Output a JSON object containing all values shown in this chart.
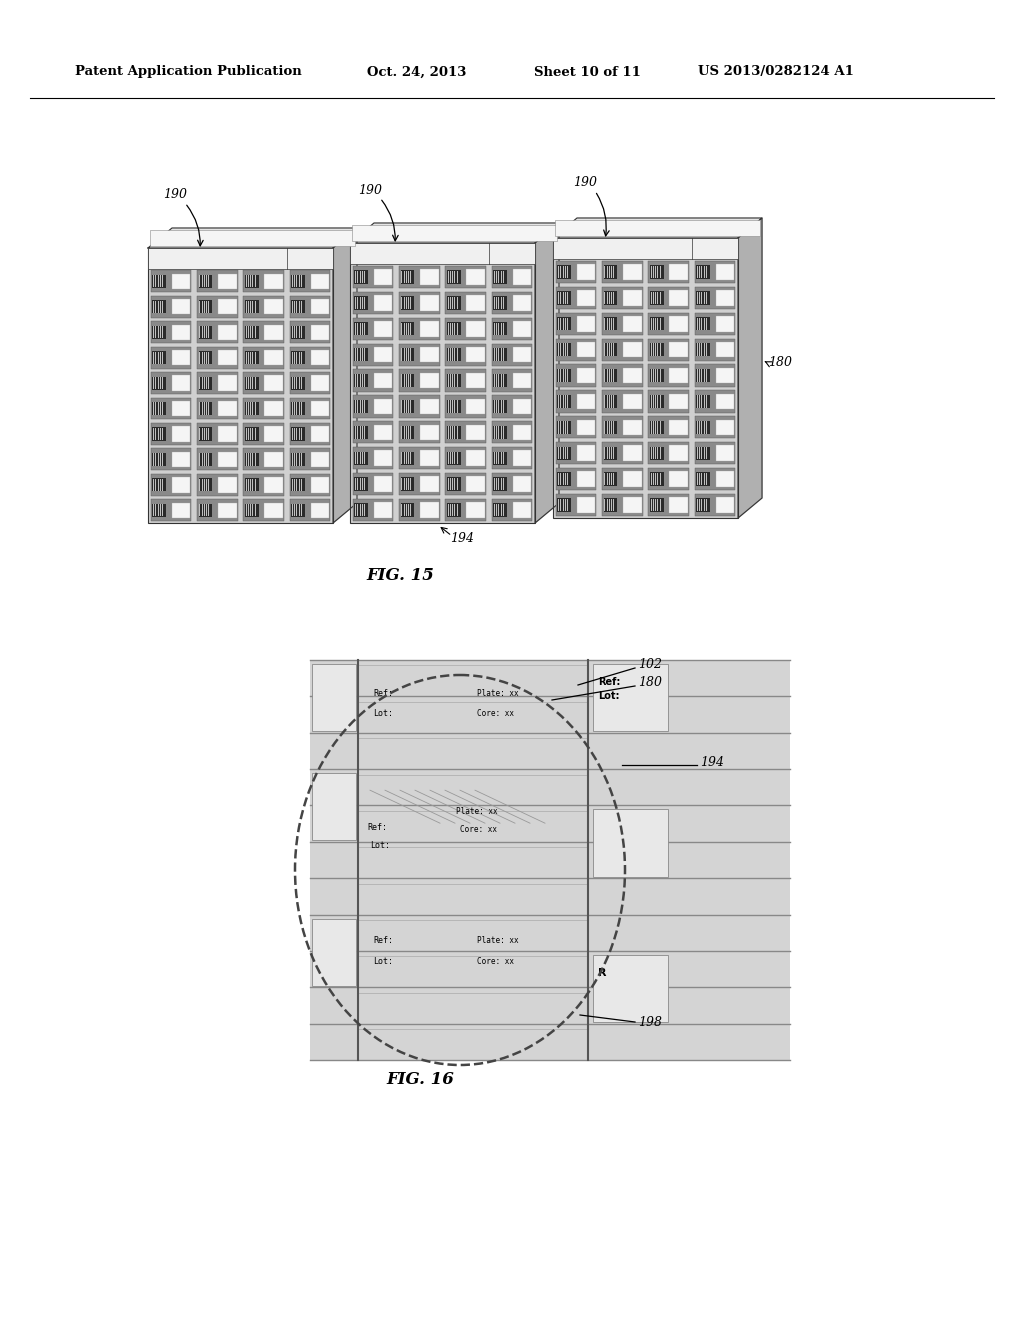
{
  "bg_color": "#ffffff",
  "header_text": "Patent Application Publication",
  "header_date": "Oct. 24, 2013",
  "header_sheet": "Sheet 10 of 11",
  "header_patent": "US 2013/0282124 A1",
  "fig15_label": "FIG. 15",
  "fig16_label": "FIG. 16",
  "cabinet_face": "#d0d0d0",
  "cabinet_side": "#b0b0b0",
  "cabinet_top": "#e5e5e5",
  "cabinet_header": "#f0f0f0",
  "cell_bg": "#e8e8e8",
  "cell_light": "#f8f8f8",
  "bar_color": "#222222",
  "panel_bg": "#d8d8d8",
  "shelf_line": "#aaaaaa",
  "label_bg": "#f5f5f5",
  "dashed_color": "#444444",
  "line_color": "#333333"
}
